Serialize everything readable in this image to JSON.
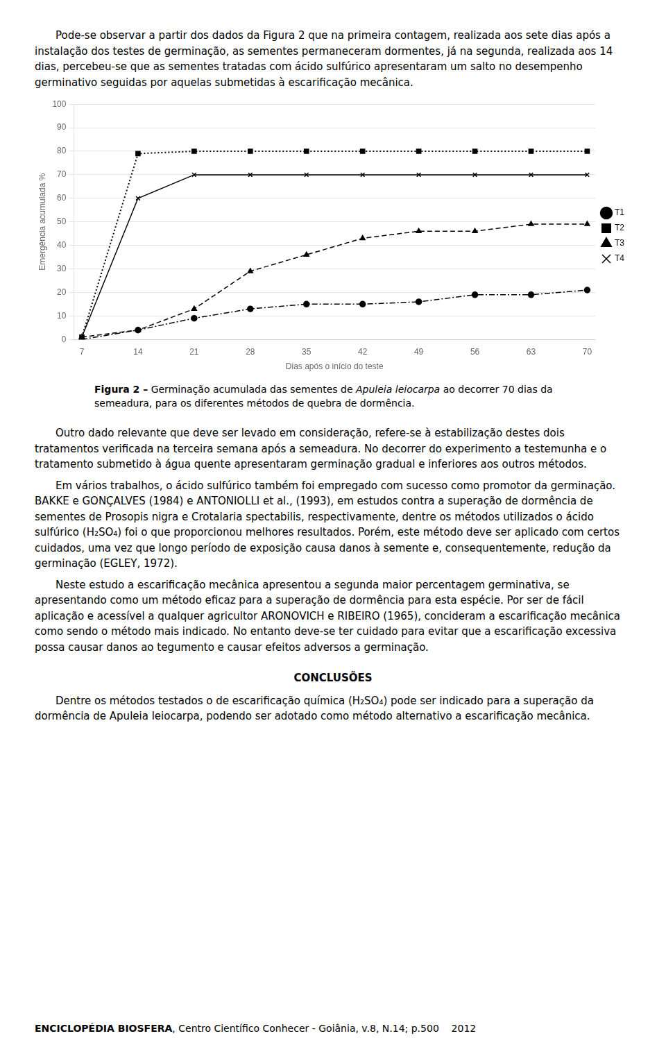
{
  "chart_data": {
    "type": "line",
    "xlabel": "Dias após o início do teste",
    "ylabel": "Emergência acumulada %",
    "x": [
      7,
      14,
      21,
      28,
      35,
      42,
      49,
      56,
      63,
      70
    ],
    "series": [
      {
        "name": "T1",
        "color": "#000000",
        "marker": "circle",
        "line_style": "dashdot",
        "values": [
          0,
          4,
          9,
          13,
          15,
          15,
          16,
          19,
          19,
          21
        ]
      },
      {
        "name": "T2",
        "color": "#000000",
        "marker": "square",
        "line_style": "dotted",
        "values": [
          1,
          79,
          80,
          80,
          80,
          80,
          80,
          80,
          80,
          80
        ]
      },
      {
        "name": "T3",
        "color": "#000000",
        "marker": "triangle",
        "line_style": "dashed",
        "values": [
          1,
          4,
          13,
          29,
          36,
          43,
          46,
          46,
          49,
          49
        ]
      },
      {
        "name": "T4",
        "color": "#000000",
        "marker": "x",
        "line_style": "solid",
        "values": [
          1,
          60,
          70,
          70,
          70,
          70,
          70,
          70,
          70,
          70
        ]
      }
    ],
    "xlim": [
      6,
      71
    ],
    "xticks": [
      7,
      14,
      21,
      28,
      35,
      42,
      49,
      56,
      63,
      70
    ],
    "ylim": [
      0,
      100
    ],
    "yticks": [
      0,
      10,
      20,
      30,
      40,
      50,
      60,
      70,
      80,
      90,
      100
    ],
    "grid": "y",
    "legend": "right"
  },
  "page": {
    "paragraphs_before": [
      "Pode-se observar a partir dos dados da Figura 2 que na primeira contagem, realizada aos sete dias após a instalação dos testes de germinação, as sementes permaneceram dormentes, já na segunda, realizada aos 14 dias, percebeu-se que as sementes tratadas com ácido sulfúrico apresentaram um salto no desempenho germinativo seguidas por aquelas submetidas à escarificação mecânica."
    ],
    "caption_bold": "Figura 2 –",
    "caption_normal": " Germinação acumulada das sementes de ",
    "caption_italic": "Apuleia leiocarpa",
    "caption_normal2": " ao decorrer 70 dias da semeadura, para os diferentes métodos de quebra de dormência.",
    "paragraphs_after": [
      "Outro dado relevante que deve ser levado em consideração, refere-se à estabilização destes dois tratamentos verificada na terceira semana após a semeadura. No decorrer do experimento a testemunha e o tratamento submetido à água quente apresentaram germinação gradual e inferiores aos outros métodos.",
      "Em vários trabalhos, o ácido sulfúrico também foi empregado com sucesso como promotor da germinação. BAKKE e GONÇALVES (1984) e ANTONIOLLI et al., (1993), em estudos contra a superação de dormência de sementes de Prosopis nigra e Crotalaria spectabilis, respectivamente, dentre os métodos utilizados o ácido sulfúrico (H₂SO₄) foi o que proporcionou melhores resultados. Porém, este método deve ser aplicado com certos cuidados, uma vez que longo período de exposição causa danos à semente e, consequentemente, redução da germinação (EGLEY, 1972).",
      "Neste estudo a escarificação mecânica apresentou a segunda maior percentagem germinativa, se apresentando como um método eficaz para a superação de dormência para esta espécie. Por ser de fácil aplicação e acessível a qualquer agricultor ARONOVICH e RIBEIRO (1965), concideram a escarificação mecânica como sendo o método mais indicado. No entanto deve-se ter cuidado para evitar que a escarificação excessiva possa causar danos ao tegumento e causar efeitos adversos a germinação."
    ],
    "section_title": "CONCLUSÕES",
    "section_paragraphs": [
      "Dentre os métodos testados o de escarificação química (H₂SO₄) pode ser indicado para a superação da dormência de Apuleia leiocarpa, podendo ser adotado como método alternativo a escarificação mecânica."
    ],
    "footer_bold": "ENCICLOPÉDIA BIOSFERA",
    "footer_normal": ", Centro Científico Conhecer - Goiânia, v.8, N.14; p.500    2012"
  }
}
